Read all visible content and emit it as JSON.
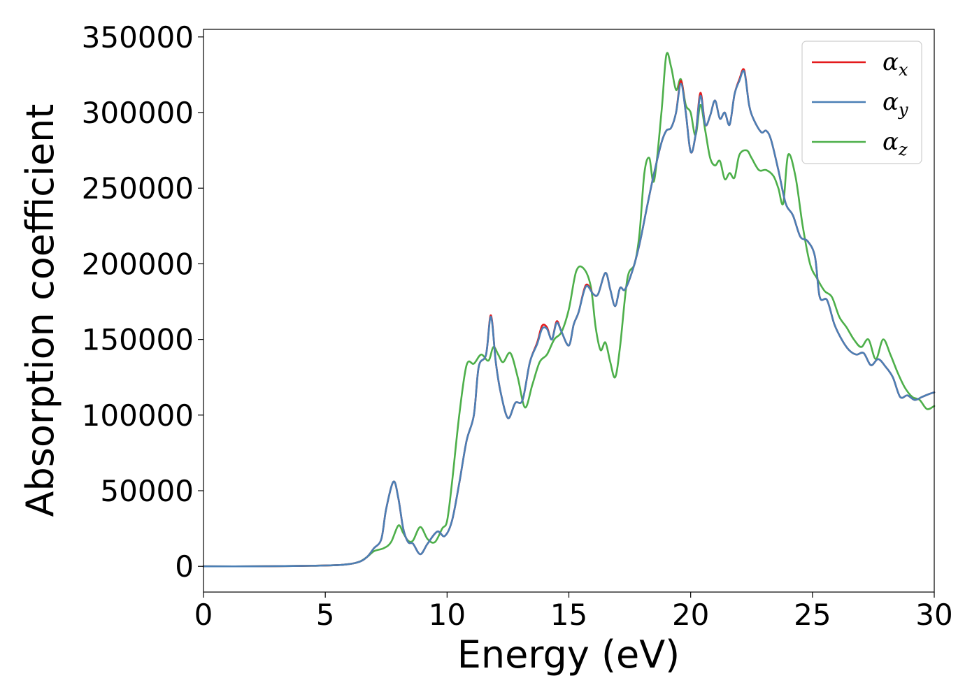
{
  "chart_data": {
    "type": "line",
    "xlabel": "Energy (eV)",
    "ylabel": "Absorption coefficient",
    "xlim": [
      0,
      30
    ],
    "ylim": [
      -17000,
      355000
    ],
    "xticks": [
      0,
      5,
      10,
      15,
      20,
      25,
      30
    ],
    "xtick_labels": [
      "0",
      "5",
      "10",
      "15",
      "20",
      "25",
      "30"
    ],
    "yticks": [
      0,
      50000,
      100000,
      150000,
      200000,
      250000,
      300000,
      350000
    ],
    "ytick_labels": [
      "0",
      "50000",
      "100000",
      "150000",
      "200000",
      "250000",
      "300000",
      "350000"
    ],
    "grid": false,
    "legend_position": "top-right",
    "series": [
      {
        "name": "α_x",
        "label_main": "α",
        "label_sub": "x",
        "color": "#e41a1c",
        "x": [
          0,
          2,
          4,
          5.5,
          6.3,
          6.7,
          7.0,
          7.3,
          7.5,
          7.8,
          8.0,
          8.2,
          8.4,
          8.6,
          8.9,
          9.2,
          9.6,
          9.9,
          10.2,
          10.5,
          10.8,
          11.1,
          11.3,
          11.6,
          11.8,
          12.0,
          12.2,
          12.5,
          12.8,
          13.1,
          13.4,
          13.7,
          13.9,
          14.1,
          14.3,
          14.5,
          14.7,
          15.0,
          15.2,
          15.4,
          15.7,
          16.0,
          16.2,
          16.5,
          16.7,
          16.9,
          17.1,
          17.3,
          17.6,
          17.9,
          18.2,
          18.5,
          18.8,
          19.0,
          19.2,
          19.4,
          19.6,
          19.8,
          20.0,
          20.2,
          20.4,
          20.6,
          20.8,
          21.0,
          21.2,
          21.4,
          21.6,
          21.8,
          22.0,
          22.2,
          22.4,
          22.6,
          22.9,
          23.1,
          23.3,
          23.6,
          23.9,
          24.2,
          24.5,
          24.8,
          25.1,
          25.3,
          25.6,
          25.9,
          26.2,
          26.5,
          26.8,
          27.1,
          27.4,
          27.7,
          28.0,
          28.3,
          28.6,
          28.9,
          29.2,
          29.5,
          29.8,
          30.0
        ],
        "y": [
          0,
          0,
          300,
          800,
          2500,
          6000,
          12000,
          18000,
          38000,
          56000,
          45000,
          25000,
          16000,
          15000,
          8000,
          15000,
          23000,
          20000,
          30000,
          55000,
          83000,
          100000,
          132000,
          140000,
          166000,
          135000,
          115000,
          98000,
          108000,
          110000,
          135000,
          148000,
          159000,
          158000,
          150000,
          162000,
          155000,
          146000,
          160000,
          168000,
          186000,
          180000,
          180000,
          194000,
          183000,
          172000,
          184000,
          183000,
          195000,
          213000,
          237000,
          260000,
          280000,
          288000,
          290000,
          300000,
          321000,
          300000,
          274000,
          285000,
          313000,
          292000,
          298000,
          308000,
          296000,
          300000,
          292000,
          312000,
          322000,
          328000,
          305000,
          295000,
          287000,
          288000,
          282000,
          262000,
          240000,
          232000,
          218000,
          215000,
          205000,
          178000,
          176000,
          160000,
          150000,
          143000,
          140000,
          141000,
          133000,
          137000,
          132000,
          125000,
          112000,
          113000,
          110000,
          112000,
          114000,
          115000
        ]
      },
      {
        "name": "α_y",
        "label_main": "α",
        "label_sub": "y",
        "color": "#4a7fb5",
        "x": [
          0,
          2,
          4,
          5.5,
          6.3,
          6.7,
          7.0,
          7.3,
          7.5,
          7.8,
          8.0,
          8.2,
          8.4,
          8.6,
          8.9,
          9.2,
          9.6,
          9.9,
          10.2,
          10.5,
          10.8,
          11.1,
          11.3,
          11.6,
          11.8,
          12.0,
          12.2,
          12.5,
          12.8,
          13.1,
          13.4,
          13.7,
          13.9,
          14.1,
          14.3,
          14.5,
          14.7,
          15.0,
          15.2,
          15.4,
          15.7,
          16.0,
          16.2,
          16.5,
          16.7,
          16.9,
          17.1,
          17.3,
          17.6,
          17.9,
          18.2,
          18.5,
          18.8,
          19.0,
          19.2,
          19.4,
          19.6,
          19.8,
          20.0,
          20.2,
          20.4,
          20.6,
          20.8,
          21.0,
          21.2,
          21.4,
          21.6,
          21.8,
          22.0,
          22.2,
          22.4,
          22.6,
          22.9,
          23.1,
          23.3,
          23.6,
          23.9,
          24.2,
          24.5,
          24.8,
          25.1,
          25.3,
          25.6,
          25.9,
          26.2,
          26.5,
          26.8,
          27.1,
          27.4,
          27.7,
          28.0,
          28.3,
          28.6,
          28.9,
          29.2,
          29.5,
          29.8,
          30.0
        ],
        "y": [
          0,
          0,
          300,
          800,
          2500,
          6000,
          12000,
          18000,
          38000,
          56000,
          45000,
          25000,
          16000,
          15000,
          8000,
          15000,
          23000,
          20000,
          30000,
          55000,
          83000,
          100000,
          132000,
          140000,
          165000,
          135000,
          115000,
          98000,
          108000,
          110000,
          135000,
          147000,
          157000,
          157000,
          150000,
          161000,
          155000,
          146000,
          160000,
          168000,
          185000,
          180000,
          180000,
          194000,
          183000,
          172000,
          184000,
          183000,
          195000,
          213000,
          237000,
          260000,
          280000,
          288000,
          290000,
          300000,
          319000,
          300000,
          274000,
          285000,
          311000,
          292000,
          298000,
          308000,
          296000,
          300000,
          292000,
          312000,
          321000,
          327000,
          305000,
          295000,
          287000,
          288000,
          282000,
          262000,
          240000,
          232000,
          218000,
          215000,
          205000,
          178000,
          176000,
          160000,
          150000,
          143000,
          140000,
          141000,
          133000,
          137000,
          132000,
          125000,
          112000,
          113000,
          110000,
          112000,
          114000,
          115000
        ]
      },
      {
        "name": "α_z",
        "label_main": "α",
        "label_sub": "z",
        "color": "#4daf4a",
        "x": [
          0,
          2,
          4,
          5.5,
          6.3,
          6.7,
          7.0,
          7.4,
          7.7,
          8.0,
          8.2,
          8.4,
          8.6,
          8.9,
          9.2,
          9.5,
          9.8,
          10.0,
          10.2,
          10.5,
          10.8,
          11.1,
          11.4,
          11.7,
          11.9,
          12.1,
          12.3,
          12.6,
          12.9,
          13.2,
          13.5,
          13.8,
          14.1,
          14.4,
          14.7,
          15.0,
          15.3,
          15.6,
          15.9,
          16.1,
          16.3,
          16.5,
          16.7,
          16.9,
          17.1,
          17.4,
          17.7,
          17.9,
          18.1,
          18.3,
          18.5,
          18.8,
          19.0,
          19.2,
          19.4,
          19.6,
          19.8,
          20.0,
          20.2,
          20.4,
          20.6,
          20.8,
          21.0,
          21.2,
          21.4,
          21.6,
          21.8,
          22.0,
          22.3,
          22.5,
          22.8,
          23.1,
          23.4,
          23.6,
          23.8,
          24.0,
          24.3,
          24.6,
          24.9,
          25.2,
          25.5,
          25.8,
          26.1,
          26.4,
          26.7,
          27.0,
          27.3,
          27.6,
          27.9,
          28.2,
          28.5,
          28.8,
          29.1,
          29.4,
          29.7,
          30.0
        ],
        "y": [
          0,
          0,
          300,
          800,
          2500,
          6000,
          10000,
          12000,
          16000,
          27000,
          22000,
          17000,
          17000,
          26000,
          18000,
          16000,
          25000,
          30000,
          55000,
          100000,
          133000,
          134000,
          140000,
          136000,
          145000,
          140000,
          135000,
          141000,
          125000,
          105000,
          120000,
          135000,
          140000,
          150000,
          155000,
          170000,
          195000,
          197000,
          185000,
          158000,
          143000,
          148000,
          135000,
          125000,
          145000,
          190000,
          200000,
          220000,
          260000,
          270000,
          255000,
          300000,
          338000,
          330000,
          315000,
          322000,
          305000,
          300000,
          285000,
          305000,
          288000,
          270000,
          265000,
          268000,
          256000,
          260000,
          257000,
          272000,
          275000,
          270000,
          262000,
          262000,
          258000,
          250000,
          240000,
          272000,
          258000,
          225000,
          200000,
          190000,
          182000,
          178000,
          165000,
          158000,
          150000,
          145000,
          150000,
          137000,
          150000,
          140000,
          128000,
          118000,
          112000,
          110000,
          104000,
          106000
        ]
      }
    ]
  }
}
